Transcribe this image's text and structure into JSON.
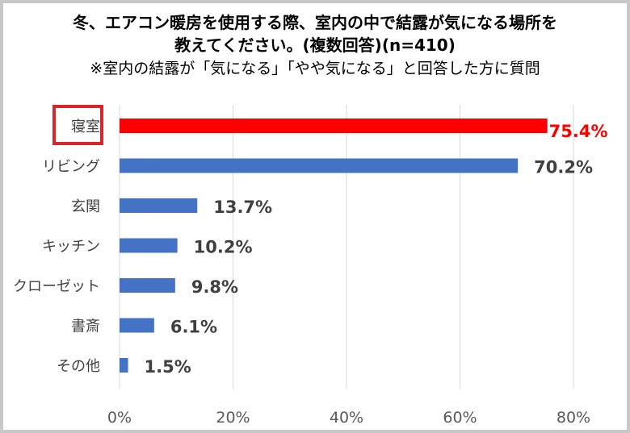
{
  "chart_data": {
    "type": "bar",
    "orientation": "horizontal",
    "title_line1": "冬、エアコン暖房を使用する際、室内の中で結露が気になる場所を",
    "title_line2": "教えてください。(複数回答)(n=410)",
    "subtitle": "※室内の結露が「気になる」「やや気になる」と回答した方に質問",
    "categories": [
      "寝室",
      "リビング",
      "玄関",
      "キッチン",
      "クローゼット",
      "書斎",
      "その他"
    ],
    "values": [
      75.4,
      70.2,
      13.7,
      10.2,
      9.8,
      6.1,
      1.5
    ],
    "data_labels": [
      "75.4%",
      "70.2%",
      "13.7%",
      "10.2%",
      "9.8%",
      "6.1%",
      "1.5%"
    ],
    "highlight_index": 0,
    "xlim": [
      0,
      80
    ],
    "x_ticks": [
      "0%",
      "20%",
      "40%",
      "60%",
      "80%"
    ],
    "grid": true,
    "colors": {
      "bar": "#4472c4",
      "highlight": "#ff0000",
      "highlight_box": "#d9262b",
      "label": "#404040",
      "grid": "#d9d9d9"
    }
  }
}
